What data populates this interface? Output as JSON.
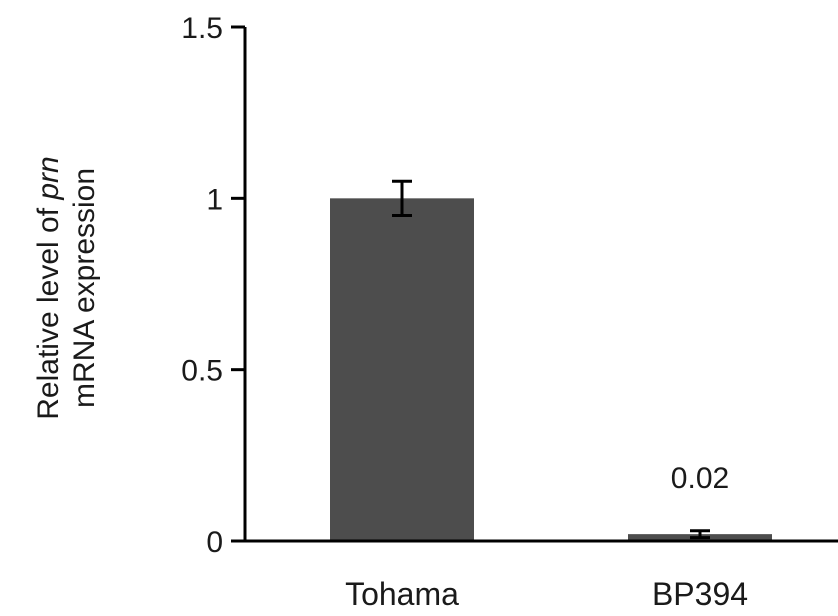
{
  "chart_data": {
    "type": "bar",
    "categories": [
      "Tohama",
      "BP394"
    ],
    "values": [
      1.0,
      0.02
    ],
    "error": [
      0.05,
      0.01
    ],
    "data_labels": [
      "",
      "0.02"
    ],
    "ylabel_lines": [
      {
        "text": "Relative level of ",
        "italic_text": "prn"
      },
      {
        "text": "mRNA expression",
        "italic_text": ""
      }
    ],
    "yticks": [
      0,
      0.5,
      1,
      1.5
    ],
    "ytick_labels": [
      "0",
      "0.5",
      "1",
      "1.5"
    ],
    "ylim": [
      0,
      1.5
    ],
    "grid": false,
    "bar_color": "#4d4d4d",
    "axis_color": "#000000"
  }
}
